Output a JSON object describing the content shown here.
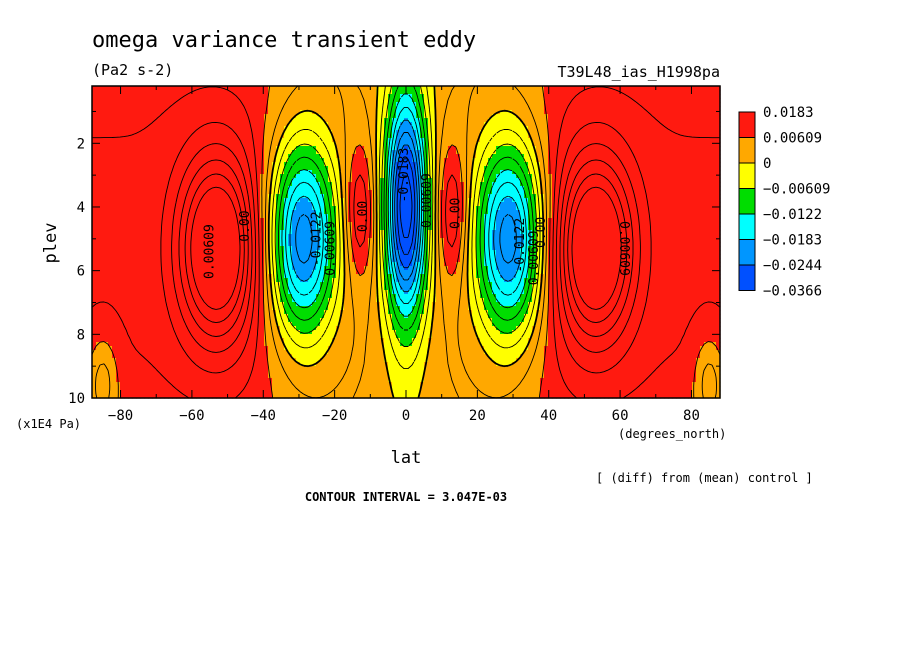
{
  "chart_data": {
    "type": "heatmap",
    "title": "omega variance transient eddy",
    "units": "(Pa2 s-2)",
    "experiment": "T39L48_ias_H1998pa",
    "xlabel": "lat",
    "xunits": "(degrees_north)",
    "ylabel": "plev",
    "yunits": "(x1E4 Pa)",
    "xlim": [
      -88,
      88
    ],
    "ylim": [
      10,
      0.2
    ],
    "x_ticks": [
      -80,
      -60,
      -40,
      -20,
      0,
      20,
      40,
      60,
      80
    ],
    "x_tick_labels": [
      "−80",
      "−60",
      "−40",
      "−20",
      "0",
      "20",
      "40",
      "60",
      "80"
    ],
    "y_ticks": [
      2,
      4,
      6,
      8,
      10
    ],
    "y_tick_labels": [
      "2",
      "4",
      "6",
      "8",
      "10"
    ],
    "contour_interval_text": "CONTOUR INTERVAL = 3.047E-03",
    "note": "[ (diff) from (mean) control ]",
    "legend": {
      "position": "right",
      "bounds": [
        "0.0183",
        "0.00609",
        "0",
        "−0.00609",
        "−0.0122",
        "−0.0183",
        "−0.0244",
        "−0.0366"
      ],
      "colors": [
        "#ff1a10",
        "#ffa800",
        "#ffff00",
        "#00dd00",
        "#00ffff",
        "#0096ff",
        "#0050ff"
      ]
    },
    "contour_labels": [
      {
        "text": "0.00609",
        "lat": -54,
        "p": 5.4
      },
      {
        "text": "0.00",
        "lat": -44,
        "p": 4.6
      },
      {
        "text": "-0.0122",
        "lat": -24,
        "p": 5.0
      },
      {
        "text": "0.00609",
        "lat": -20,
        "p": 5.3
      },
      {
        "text": "0.00",
        "lat": -11,
        "p": 4.3
      },
      {
        "text": "-0.0183",
        "lat": 0.5,
        "p": 3.0
      },
      {
        "text": "0.00609",
        "lat": 7,
        "p": 3.8
      },
      {
        "text": "0.00",
        "lat": 15,
        "p": 4.2
      },
      {
        "text": "-0.0122",
        "lat": 33,
        "p": 5.2
      },
      {
        "text": "0.00609",
        "lat": 37,
        "p": 5.6
      },
      {
        "text": "0.00",
        "lat": 39,
        "p": 4.8
      },
      {
        "text": "0.00609",
        "lat": 60,
        "p": 5.3
      }
    ],
    "features": [
      {
        "lat": -53,
        "p": 5.3,
        "amplitude": 0.024,
        "lat_width": 7.5,
        "p_width": 2.0
      },
      {
        "lat": 53,
        "p": 5.3,
        "amplitude": 0.024,
        "lat_width": 7.5,
        "p_width": 2.0
      },
      {
        "lat": -29,
        "p": 5.0,
        "amplitude": -0.0305,
        "lat_width": 7.0,
        "p_width": 2.3
      },
      {
        "lat": 29,
        "p": 5.0,
        "amplitude": -0.0305,
        "lat_width": 7.0,
        "p_width": 2.3
      },
      {
        "lat": 0,
        "p": 4.0,
        "amplitude": -0.036,
        "lat_width": 4.3,
        "p_width": 2.6
      },
      {
        "lat": -13,
        "p": 4.2,
        "amplitude": 0.0095,
        "lat_width": 3.0,
        "p_width": 1.5
      },
      {
        "lat": 13,
        "p": 4.2,
        "amplitude": 0.0095,
        "lat_width": 3.0,
        "p_width": 1.5
      },
      {
        "lat": -85,
        "p": 9.5,
        "amplitude": -0.007,
        "lat_width": 3.0,
        "p_width": 1.0
      },
      {
        "lat": 85,
        "p": 9.5,
        "amplitude": -0.007,
        "lat_width": 3.0,
        "p_width": 1.0
      }
    ]
  }
}
